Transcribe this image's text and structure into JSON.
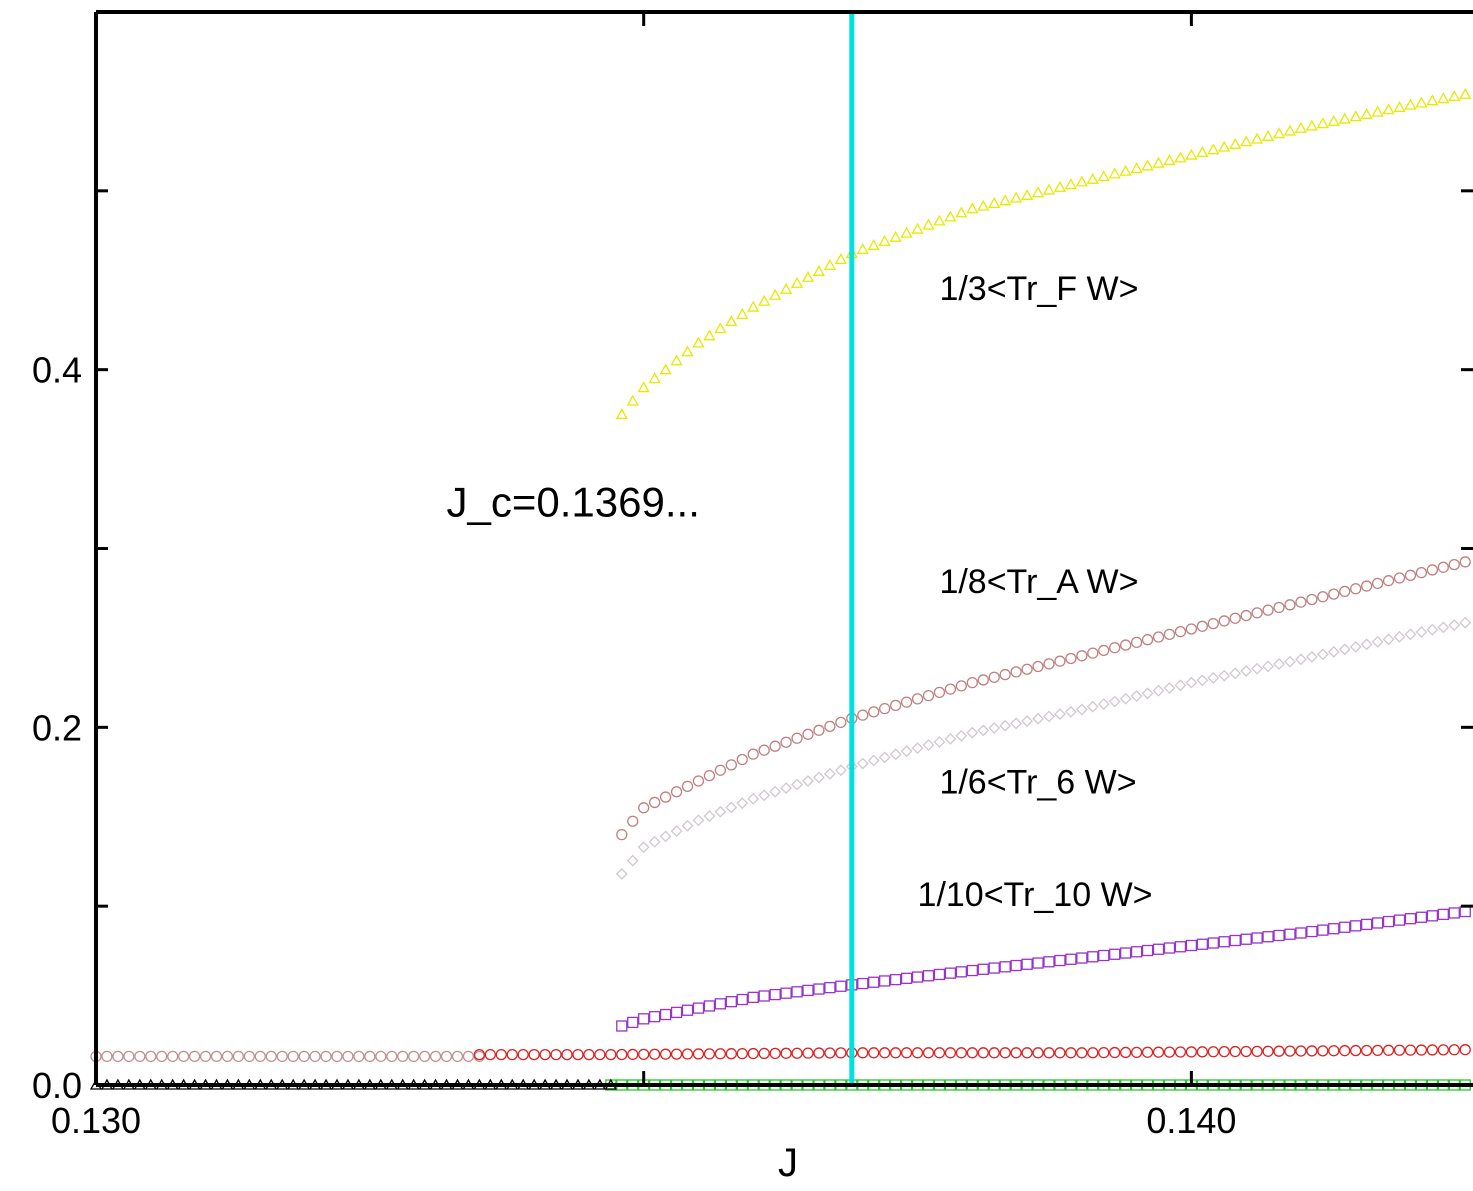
{
  "chart_data": {
    "type": "scatter",
    "title": "",
    "xlabel": "J",
    "ylabel": "",
    "xlim": [
      0.13,
      0.143
    ],
    "ylim": [
      0.0,
      0.6
    ],
    "x_ticks": [
      {
        "value": 0.13,
        "label": "0.130"
      },
      {
        "value": 0.135,
        "label": ""
      },
      {
        "value": 0.14,
        "label": "0.140"
      }
    ],
    "y_ticks": [
      {
        "value": 0.0,
        "label": "0.0"
      },
      {
        "value": 0.1,
        "label": ""
      },
      {
        "value": 0.2,
        "label": "0.2"
      },
      {
        "value": 0.3,
        "label": ""
      },
      {
        "value": 0.4,
        "label": "0.4"
      },
      {
        "value": 0.5,
        "label": ""
      }
    ],
    "grid": false,
    "vline": {
      "x": 0.1369,
      "color": "#00e0e0",
      "label": "J_c=0.1369..."
    },
    "series": [
      {
        "name": "1/3<Tr_F W>",
        "marker": "triangle",
        "color": "#e8e800",
        "x": [
          0.1347,
          0.1348,
          0.135,
          0.1355,
          0.136,
          0.1369,
          0.138,
          0.139,
          0.14,
          0.141,
          0.142,
          0.143
        ],
        "y": [
          0.0,
          0.375,
          0.39,
          0.415,
          0.435,
          0.465,
          0.49,
          0.505,
          0.52,
          0.535,
          0.548,
          0.56
        ]
      },
      {
        "name": "1/8<Tr_A W>",
        "marker": "circle",
        "color": "#c08080",
        "x": [
          0.1348,
          0.135,
          0.1355,
          0.136,
          0.1369,
          0.138,
          0.139,
          0.14,
          0.141,
          0.142,
          0.143
        ],
        "y": [
          0.14,
          0.155,
          0.17,
          0.185,
          0.205,
          0.225,
          0.24,
          0.255,
          0.27,
          0.285,
          0.3
        ]
      },
      {
        "name": "1/6<Tr_6 W>",
        "marker": "diamond",
        "color": "#d0c8d0",
        "x": [
          0.1348,
          0.135,
          0.1355,
          0.136,
          0.1369,
          0.138,
          0.139,
          0.14,
          0.141,
          0.142,
          0.143
        ],
        "y": [
          0.118,
          0.133,
          0.148,
          0.16,
          0.178,
          0.197,
          0.21,
          0.225,
          0.238,
          0.252,
          0.265
        ]
      },
      {
        "name": "1/10<Tr_10 W>",
        "marker": "square",
        "color": "#9933cc",
        "x": [
          0.1348,
          0.135,
          0.1355,
          0.136,
          0.1369,
          0.138,
          0.139,
          0.14,
          0.141,
          0.142,
          0.143
        ],
        "y": [
          0.033,
          0.037,
          0.043,
          0.049,
          0.056,
          0.064,
          0.071,
          0.078,
          0.085,
          0.093,
          0.101
        ]
      },
      {
        "name": "",
        "marker": "circle",
        "color": "#c09090",
        "x": [
          0.13,
          0.1316,
          0.133,
          0.1335
        ],
        "y": [
          0.016,
          0.016,
          0.016,
          0.016
        ]
      },
      {
        "name": "",
        "marker": "circle",
        "color": "#dd2222",
        "x": [
          0.1335,
          0.1347,
          0.1369,
          0.139,
          0.141,
          0.143
        ],
        "y": [
          0.017,
          0.017,
          0.018,
          0.018,
          0.019,
          0.02
        ]
      },
      {
        "name": "",
        "marker": "square",
        "color": "#22cc22",
        "x": [
          0.1347,
          0.143
        ],
        "y": [
          0.0,
          0.0
        ]
      },
      {
        "name": "",
        "marker": "triangle",
        "color": "#000000",
        "x": [
          0.13,
          0.1347
        ],
        "y": [
          0.0,
          0.0
        ]
      }
    ],
    "annotations": [
      {
        "text": "1/3<Tr_F W>",
        "x": 0.1377,
        "y": 0.439
      },
      {
        "text": "J_c=0.1369...",
        "x": 0.1332,
        "y": 0.318
      },
      {
        "text": "1/8<Tr_A W>",
        "x": 0.1377,
        "y": 0.275
      },
      {
        "text": "1/6<Tr_6 W>",
        "x": 0.1377,
        "y": 0.163
      },
      {
        "text": "1/10<Tr_10 W>",
        "x": 0.1375,
        "y": 0.1
      }
    ]
  }
}
